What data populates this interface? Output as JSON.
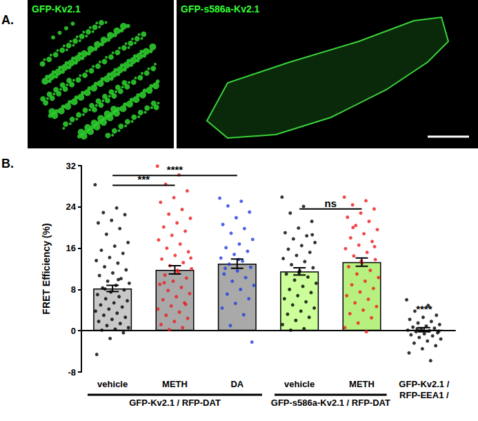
{
  "panel_a": {
    "label": "A.",
    "images": [
      "GFP-Kv2.1",
      "GFP-s586a-Kv2.1"
    ]
  },
  "chart_data": {
    "type": "bar",
    "panel_label": "B.",
    "ylabel": "FRET Efficiency (%)",
    "categories": [
      "vehicle",
      "METH",
      "DA",
      "vehicle",
      "METH",
      "GFP-Kv2.1 /\nRFP-EEA1 /"
    ],
    "values": [
      8.2,
      11.8,
      13.0,
      11.5,
      13.3,
      0.2
    ],
    "errors": [
      0.6,
      0.8,
      0.9,
      0.7,
      0.8,
      0.4
    ],
    "colors": [
      "#c8c8c8",
      "#a9a9a9",
      "#a9a9a9",
      "#ccff99",
      "#b8f080",
      "#ffffff"
    ],
    "point_colors": [
      "#000000",
      "#ee1c1c",
      "#1f3fe0",
      "#000000",
      "#ee1c1c",
      "#000000"
    ],
    "points": [
      [
        28.3,
        23.8,
        22.9,
        22.5,
        21.4,
        20.9,
        19.8,
        18.7,
        17.1,
        16.4,
        15.6,
        15.0,
        14.2,
        13.6,
        13.1,
        12.4,
        11.8,
        11.2,
        10.7,
        10.1,
        9.6,
        9.2,
        8.8,
        8.3,
        7.9,
        7.5,
        7.0,
        6.6,
        6.2,
        5.8,
        5.4,
        5.0,
        4.6,
        4.2,
        3.8,
        3.4,
        3.0,
        2.6,
        2.2,
        1.8,
        1.4,
        1.0,
        0.6,
        0.3,
        0.1,
        -0.4,
        -1.5,
        -4.6,
        9.9,
        8.1
      ],
      [
        31.9,
        30.2,
        28.4,
        27.1,
        25.8,
        24.9,
        23.5,
        22.6,
        21.8,
        20.9,
        20.1,
        19.3,
        18.5,
        17.6,
        16.8,
        16.0,
        15.3,
        14.6,
        13.9,
        13.2,
        12.6,
        12.0,
        11.4,
        10.8,
        10.2,
        9.6,
        9.0,
        8.4,
        7.8,
        7.2,
        6.6,
        6.0,
        5.4,
        4.8,
        4.2,
        3.6,
        3.0,
        2.4,
        1.8,
        1.2,
        0.6,
        0.2,
        14.1,
        11.7,
        9.3,
        5.1
      ],
      [
        25.7,
        25.1,
        24.2,
        23.0,
        21.9,
        20.6,
        19.8,
        18.9,
        17.7,
        16.8,
        16.1,
        15.4,
        14.8,
        14.1,
        13.5,
        12.9,
        12.3,
        11.6,
        11.0,
        10.3,
        9.6,
        8.8,
        8.0,
        7.1,
        6.2,
        5.3,
        4.4,
        3.1,
        1.0,
        -2.2,
        13.8,
        12.1
      ],
      [
        25.9,
        24.1,
        22.8,
        21.2,
        19.9,
        19.0,
        18.4,
        17.8,
        17.1,
        16.5,
        15.8,
        15.2,
        14.6,
        14.0,
        13.4,
        12.8,
        12.2,
        11.6,
        11.0,
        10.4,
        9.8,
        9.2,
        8.6,
        8.0,
        7.4,
        6.8,
        6.2,
        5.6,
        5.0,
        4.4,
        3.8,
        3.2,
        2.6,
        2.0,
        1.2,
        0.4,
        0.1,
        18.6,
        11.3
      ],
      [
        25.9,
        25.2,
        24.4,
        23.6,
        22.8,
        22.0,
        21.2,
        20.4,
        19.6,
        18.8,
        18.0,
        17.3,
        16.6,
        15.9,
        15.2,
        14.5,
        13.8,
        13.1,
        12.4,
        11.7,
        11.0,
        10.3,
        9.6,
        8.9,
        8.2,
        7.5,
        6.8,
        6.1,
        5.4,
        4.7,
        4.0,
        3.3,
        2.5,
        1.5,
        0.6,
        -0.2,
        20.0,
        16.3,
        13.5
      ],
      [
        6.0,
        4.9,
        3.8,
        3.0,
        2.6,
        2.2,
        1.8,
        1.5,
        1.2,
        0.9,
        0.7,
        0.5,
        0.3,
        0.1,
        0.0,
        -0.2,
        -0.4,
        -0.6,
        -0.8,
        -1.0,
        -1.3,
        -1.6,
        -2.0,
        -2.4,
        -2.9,
        -3.5,
        -4.3,
        -5.8,
        0.4,
        -0.1
      ]
    ],
    "groups": [
      {
        "label": "GFP-Kv2.1 / RFP-DAT",
        "from": 0,
        "to": 2
      },
      {
        "label": "GFP-s586a-Kv2.1 / RFP-DAT",
        "from": 3,
        "to": 4
      }
    ],
    "annotations": [
      {
        "label": "***",
        "from": 0,
        "to": 1,
        "y": 28.2
      },
      {
        "label": "****",
        "from": 0,
        "to": 2,
        "y": 30.1
      },
      {
        "label": "ns",
        "from": 3,
        "to": 4,
        "y": 23.6
      },
      {
        "label": "****",
        "at": 5,
        "y": 3.3
      }
    ],
    "ylim": [
      -8,
      32
    ],
    "yticks": [
      -8,
      0,
      8,
      16,
      24,
      32
    ],
    "grid": false
  }
}
